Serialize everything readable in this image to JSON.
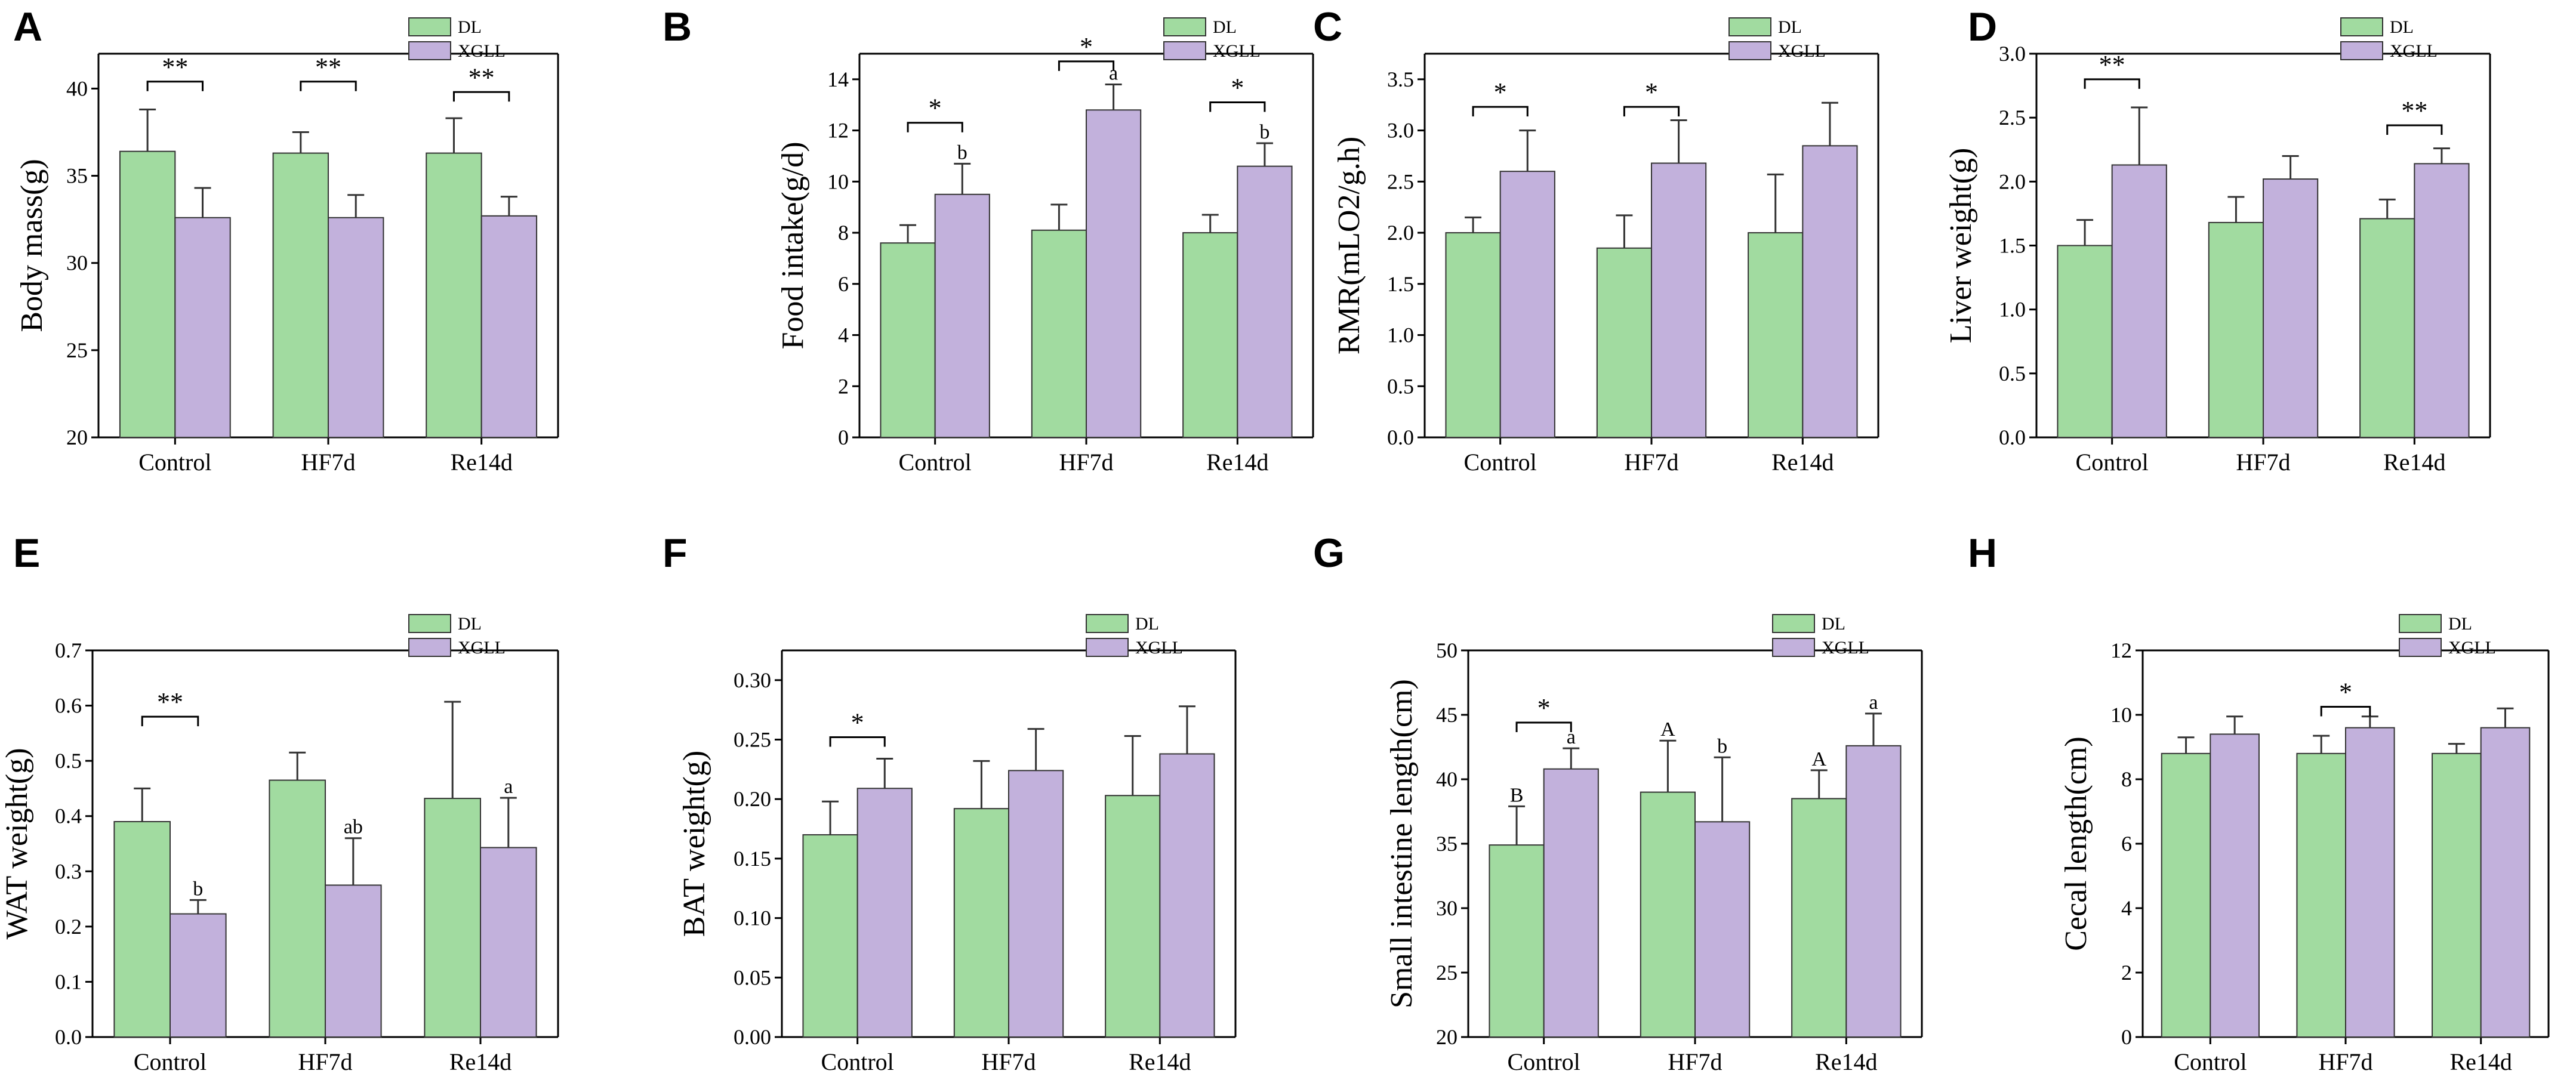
{
  "legend": {
    "series_names": [
      "DL",
      "XGLL"
    ]
  },
  "colors": {
    "DL": "#a1dba0",
    "XGLL": "#c2b1dc",
    "edge": "#333333"
  },
  "chart_data": [
    {
      "type": "bar",
      "panel": "A",
      "ylabel": "Body mass(g)",
      "categories": [
        "Control",
        "HF7d",
        "Re14d"
      ],
      "ylim": [
        20,
        42
      ],
      "yticks": [
        20,
        25,
        30,
        35,
        40
      ],
      "tick_decimals": 0,
      "series": [
        {
          "name": "DL",
          "values": [
            36.4,
            36.3,
            36.3
          ],
          "errors": [
            2.4,
            1.2,
            2.0
          ],
          "letters": [
            "",
            "",
            ""
          ]
        },
        {
          "name": "XGLL",
          "values": [
            32.6,
            32.6,
            32.7
          ],
          "errors": [
            1.7,
            1.3,
            1.1
          ],
          "letters": [
            "",
            "",
            ""
          ]
        }
      ],
      "brackets": [
        {
          "group": 0,
          "label": "**",
          "y": 40.4
        },
        {
          "group": 1,
          "label": "**",
          "y": 40.4
        },
        {
          "group": 2,
          "label": "**",
          "y": 39.8
        }
      ]
    },
    {
      "type": "bar",
      "panel": "B",
      "ylabel": "Food intake(g/d)",
      "categories": [
        "Control",
        "HF7d",
        "Re14d"
      ],
      "ylim": [
        0,
        15
      ],
      "yticks": [
        0,
        2,
        4,
        6,
        8,
        10,
        12,
        14
      ],
      "tick_decimals": 0,
      "series": [
        {
          "name": "DL",
          "values": [
            7.6,
            8.1,
            8.0
          ],
          "errors": [
            0.7,
            1.0,
            0.7
          ],
          "letters": [
            "",
            "",
            ""
          ]
        },
        {
          "name": "XGLL",
          "values": [
            9.5,
            12.8,
            10.6
          ],
          "errors": [
            1.2,
            1.0,
            0.9
          ],
          "letters": [
            "b",
            "a",
            "b"
          ]
        }
      ],
      "brackets": [
        {
          "group": 0,
          "label": "*",
          "y": 12.3
        },
        {
          "group": 1,
          "label": "*",
          "y": 14.7
        },
        {
          "group": 2,
          "label": "*",
          "y": 13.1
        }
      ]
    },
    {
      "type": "bar",
      "panel": "C",
      "ylabel": "RMR(mLO2/g.h)",
      "categories": [
        "Control",
        "HF7d",
        "Re14d"
      ],
      "ylim": [
        0,
        3.75
      ],
      "yticks": [
        0.0,
        0.5,
        1.0,
        1.5,
        2.0,
        2.5,
        3.0,
        3.5
      ],
      "tick_decimals": 1,
      "series": [
        {
          "name": "DL",
          "values": [
            2.0,
            1.85,
            2.0
          ],
          "errors": [
            0.15,
            0.32,
            0.57
          ],
          "letters": [
            "",
            "",
            ""
          ]
        },
        {
          "name": "XGLL",
          "values": [
            2.6,
            2.68,
            2.85
          ],
          "errors": [
            0.4,
            0.42,
            0.42
          ],
          "letters": [
            "",
            "",
            ""
          ]
        }
      ],
      "brackets": [
        {
          "group": 0,
          "label": "*",
          "y": 3.23
        },
        {
          "group": 1,
          "label": "*",
          "y": 3.23
        }
      ]
    },
    {
      "type": "bar",
      "panel": "D",
      "ylabel": "Liver weight(g)",
      "categories": [
        "Control",
        "HF7d",
        "Re14d"
      ],
      "ylim": [
        0,
        3.0
      ],
      "yticks": [
        0.0,
        0.5,
        1.0,
        1.5,
        2.0,
        2.5,
        3.0
      ],
      "tick_decimals": 1,
      "series": [
        {
          "name": "DL",
          "values": [
            1.5,
            1.68,
            1.71
          ],
          "errors": [
            0.2,
            0.2,
            0.15
          ],
          "letters": [
            "",
            "",
            ""
          ]
        },
        {
          "name": "XGLL",
          "values": [
            2.13,
            2.02,
            2.14
          ],
          "errors": [
            0.45,
            0.18,
            0.12
          ],
          "letters": [
            "",
            "",
            ""
          ]
        }
      ],
      "brackets": [
        {
          "group": 0,
          "label": "**",
          "y": 2.8
        },
        {
          "group": 2,
          "label": "**",
          "y": 2.44
        }
      ]
    },
    {
      "type": "bar",
      "panel": "E",
      "ylabel": "WAT weight(g)",
      "categories": [
        "Control",
        "HF7d",
        "Re14d"
      ],
      "ylim": [
        0,
        0.7
      ],
      "yticks": [
        0.0,
        0.1,
        0.2,
        0.3,
        0.4,
        0.5,
        0.6,
        0.7
      ],
      "tick_decimals": 1,
      "series": [
        {
          "name": "DL",
          "values": [
            0.39,
            0.465,
            0.432
          ],
          "errors": [
            0.06,
            0.05,
            0.175
          ],
          "letters": [
            "",
            "",
            ""
          ]
        },
        {
          "name": "XGLL",
          "values": [
            0.223,
            0.275,
            0.343
          ],
          "errors": [
            0.025,
            0.085,
            0.09
          ],
          "letters": [
            "b",
            "ab",
            "a"
          ]
        }
      ],
      "brackets": [
        {
          "group": 0,
          "label": "**",
          "y": 0.58
        }
      ]
    },
    {
      "type": "bar",
      "panel": "F",
      "ylabel": "BAT weight(g)",
      "categories": [
        "Control",
        "HF7d",
        "Re14d"
      ],
      "ylim": [
        0,
        0.325
      ],
      "yticks": [
        0.0,
        0.05,
        0.1,
        0.15,
        0.2,
        0.25,
        0.3
      ],
      "tick_decimals": 2,
      "series": [
        {
          "name": "DL",
          "values": [
            0.17,
            0.192,
            0.203
          ],
          "errors": [
            0.028,
            0.04,
            0.05
          ],
          "letters": [
            "",
            "",
            ""
          ]
        },
        {
          "name": "XGLL",
          "values": [
            0.209,
            0.224,
            0.238
          ],
          "errors": [
            0.025,
            0.035,
            0.04
          ],
          "letters": [
            "",
            "",
            ""
          ]
        }
      ],
      "brackets": [
        {
          "group": 0,
          "label": "*",
          "y": 0.252
        }
      ]
    },
    {
      "type": "bar",
      "panel": "G",
      "ylabel": "Small intestine length(cm)",
      "categories": [
        "Control",
        "HF7d",
        "Re14d"
      ],
      "ylim": [
        20,
        50
      ],
      "yticks": [
        20,
        25,
        30,
        35,
        40,
        45,
        50
      ],
      "tick_decimals": 0,
      "series": [
        {
          "name": "DL",
          "values": [
            34.9,
            39.0,
            38.5
          ],
          "errors": [
            3.0,
            4.0,
            2.2
          ],
          "letters": [
            "B",
            "A",
            "A"
          ]
        },
        {
          "name": "XGLL",
          "values": [
            40.8,
            36.7,
            42.6
          ],
          "errors": [
            1.6,
            5.0,
            2.5
          ],
          "letters": [
            "a",
            "b",
            "a"
          ]
        }
      ],
      "brackets": [
        {
          "group": 0,
          "label": "*",
          "y": 44.4
        }
      ]
    },
    {
      "type": "bar",
      "panel": "H",
      "ylabel": "Cecal length(cm)",
      "categories": [
        "Control",
        "HF7d",
        "Re14d"
      ],
      "ylim": [
        0,
        12
      ],
      "yticks": [
        0,
        2,
        4,
        6,
        8,
        10,
        12
      ],
      "tick_decimals": 0,
      "series": [
        {
          "name": "DL",
          "values": [
            8.8,
            8.8,
            8.8
          ],
          "errors": [
            0.5,
            0.55,
            0.3
          ],
          "letters": [
            "",
            "",
            ""
          ]
        },
        {
          "name": "XGLL",
          "values": [
            9.4,
            9.6,
            9.6
          ],
          "errors": [
            0.55,
            0.35,
            0.6
          ],
          "letters": [
            "",
            "",
            ""
          ]
        }
      ],
      "brackets": [
        {
          "group": 1,
          "label": "*",
          "y": 10.25
        }
      ]
    }
  ]
}
